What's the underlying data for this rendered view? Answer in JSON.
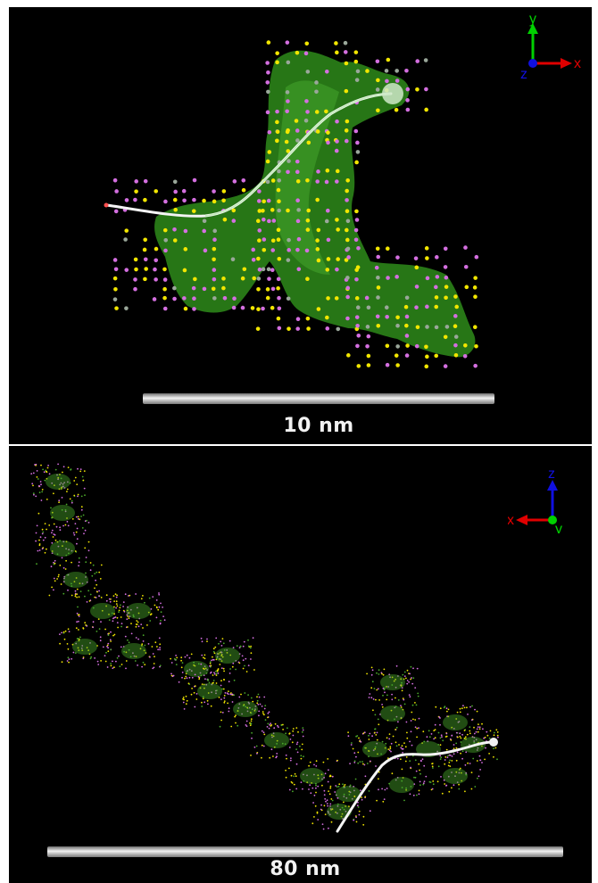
{
  "panels": [
    {
      "scale_label": "10 nm",
      "axes": {
        "right": "x",
        "up": "y",
        "out": "z"
      },
      "colors": {
        "blob": "#2e8b1a",
        "dot_a": "#f2e600",
        "dot_b": "#d46fe0",
        "path": "#f4f4f4"
      }
    },
    {
      "scale_label": "80 nm",
      "axes": {
        "left": "x",
        "up": "z",
        "out": "y"
      },
      "colors": {
        "blob": "#4aa82a",
        "dot_a": "#f2e600",
        "dot_b": "#d46fe0",
        "path": "#f4f4f4"
      }
    }
  ]
}
